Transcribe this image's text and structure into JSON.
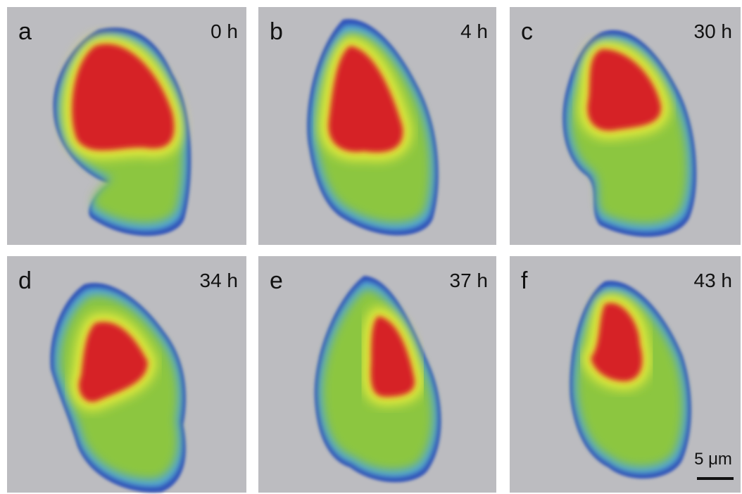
{
  "panels": [
    {
      "label": "a",
      "time": "0 h"
    },
    {
      "label": "b",
      "time": "4 h"
    },
    {
      "label": "c",
      "time": "30 h"
    },
    {
      "label": "d",
      "time": "34 h"
    },
    {
      "label": "e",
      "time": "37 h"
    },
    {
      "label": "f",
      "time": "43 h"
    }
  ],
  "scale_bar": "5 μm"
}
